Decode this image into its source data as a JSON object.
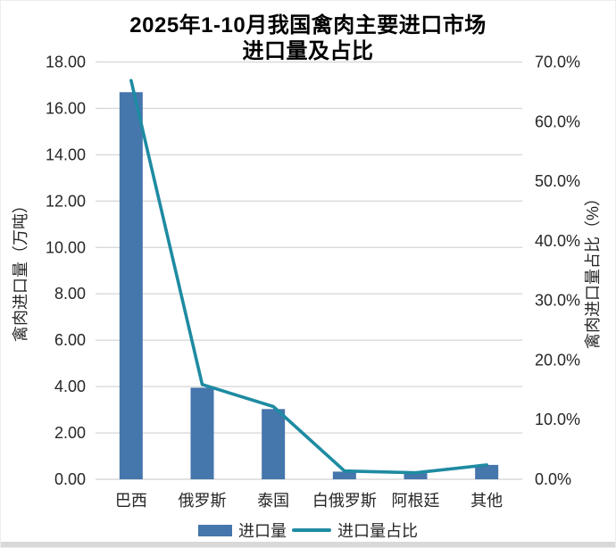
{
  "header": {
    "title_line1": "2025年1-10月我国禽肉主要进口市场",
    "title_line2": "进口量及占比"
  },
  "colors": {
    "bar": "#4576ac",
    "line": "#1e8ba2",
    "grid": "#d9d9d9",
    "tick_text": "#262626",
    "bottom_edge": "#d9d9d9"
  },
  "chart_data": {
    "type": "combo",
    "title": "2025年1-10月我国禽肉主要进口市场 进口量及占比",
    "categories": [
      "巴西",
      "俄罗斯",
      "泰国",
      "白俄罗斯",
      "阿根廷",
      "其他"
    ],
    "series": [
      {
        "name": "进口量",
        "type": "bar",
        "axis": "left",
        "unit": "万吨",
        "color": "#4576ac",
        "values": [
          16.7,
          3.95,
          3.03,
          0.33,
          0.26,
          0.62
        ]
      },
      {
        "name": "进口量占比",
        "type": "line",
        "axis": "right",
        "unit": "%",
        "color": "#1e8ba2",
        "values": [
          66.9,
          15.9,
          12.2,
          1.4,
          1.1,
          2.4
        ]
      }
    ],
    "left_axis": {
      "label": "禽肉进口量（万吨）",
      "min": 0,
      "max": 18,
      "step": 2,
      "tick_format": "0.00"
    },
    "right_axis": {
      "label": "禽肉进口量占比（%）",
      "min": 0,
      "max": 70,
      "step": 10,
      "tick_format": "0.0%"
    },
    "grid": true,
    "legend_position": "bottom"
  }
}
